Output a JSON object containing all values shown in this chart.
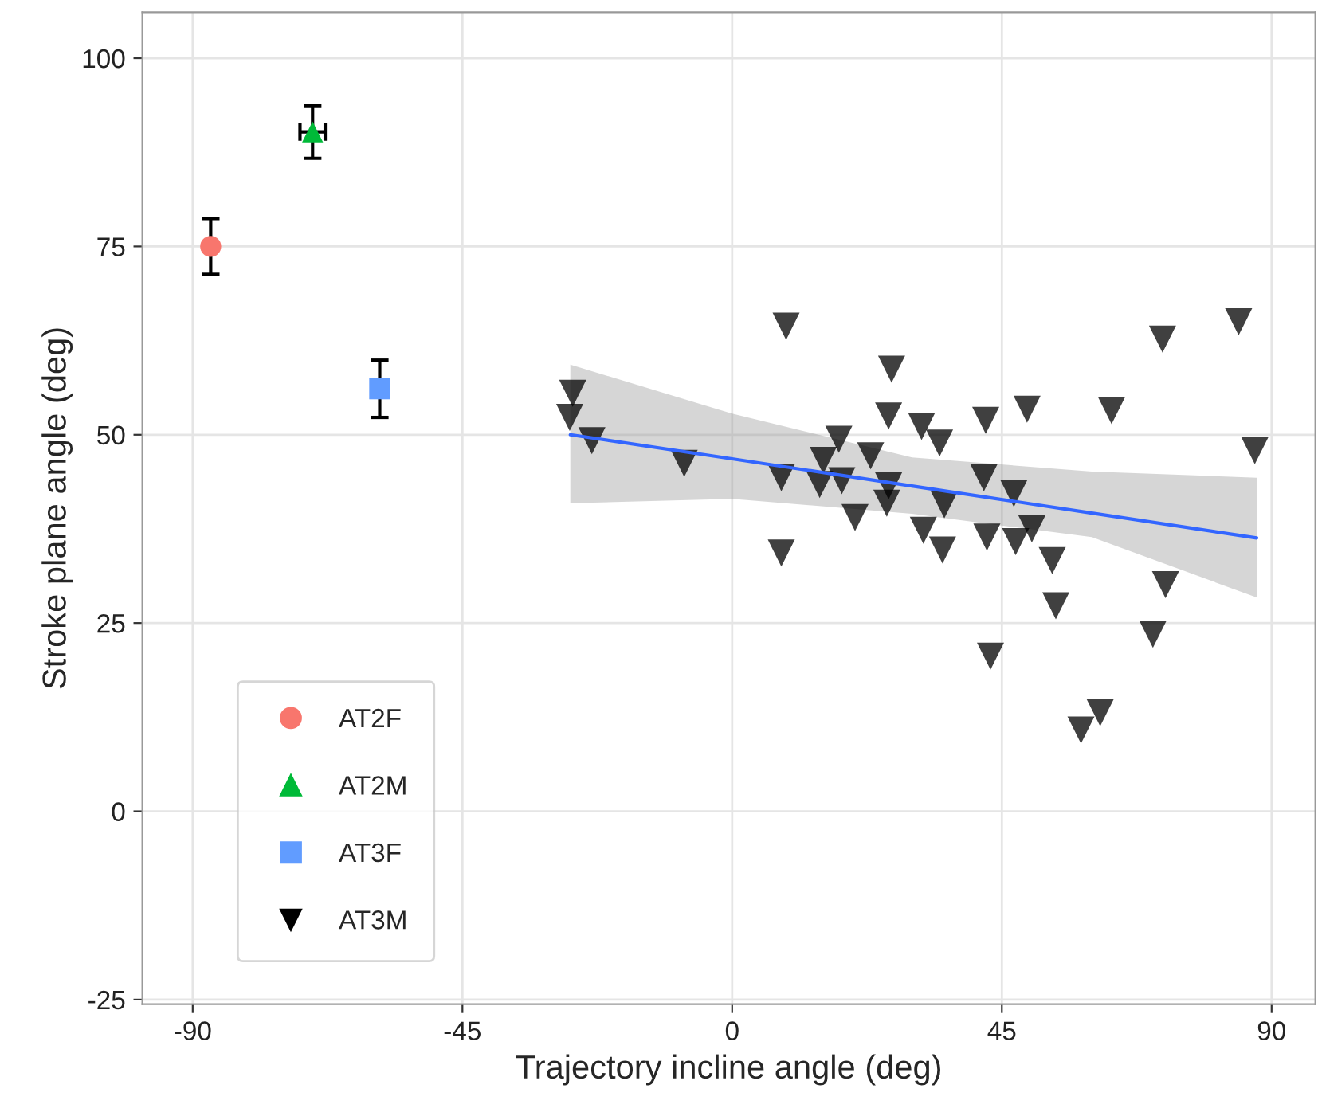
{
  "chart_data": {
    "type": "scatter",
    "xlabel": "Trajectory incline angle (deg)",
    "ylabel": "Stroke plane angle (deg)",
    "xlim": [
      -98.4,
      97.3
    ],
    "ylim": [
      -25.6,
      106.1
    ],
    "xticks": [
      -90,
      -45,
      0,
      45,
      90
    ],
    "yticks": [
      -25,
      0,
      25,
      50,
      75,
      100
    ],
    "grid": true,
    "legend": "bottom left",
    "series": [
      {
        "name": "AT2F",
        "color": "#f8766d",
        "marker": "circle",
        "x": [
          -87
        ],
        "values": [
          75
        ],
        "errors": [
          3.7
        ]
      },
      {
        "name": "AT2M",
        "color": "#00ba38",
        "marker": "triangle",
        "x": [
          -70
        ],
        "values": [
          90.2
        ],
        "errors": [
          3.5
        ],
        "xerrors": [
          2.1
        ]
      },
      {
        "name": "AT3F",
        "color": "#619cff",
        "marker": "square",
        "x": [
          -58.8
        ],
        "values": [
          56.1
        ],
        "errors": [
          3.8
        ]
      },
      {
        "name": "AT3M",
        "color": "#000000",
        "marker": "triangle_down",
        "x": [
          -26.6,
          -27.1,
          -23.4,
          -8.0,
          9.0,
          8.2,
          8.2,
          15.2,
          14.6,
          17.8,
          18.3,
          20.5,
          23.1,
          26.6,
          26.1,
          26.1,
          25.8,
          31.6,
          34.6,
          31.9,
          35.1,
          35.4,
          42.0,
          42.5,
          47.3,
          50.0,
          47.0,
          42.3,
          49.2,
          63.3,
          71.8,
          84.5,
          87.2,
          53.4,
          54.0,
          72.3,
          70.2,
          43.1,
          61.4,
          58.2
        ],
        "values": [
          55.5,
          52.3,
          49.2,
          46.2,
          64.4,
          44.3,
          34.3,
          46.6,
          43.4,
          49.4,
          43.9,
          39.0,
          47.2,
          58.7,
          52.5,
          43.2,
          40.9,
          51.1,
          48.9,
          37.3,
          34.7,
          40.7,
          44.3,
          36.4,
          35.8,
          37.5,
          42.2,
          51.9,
          53.4,
          53.2,
          62.7,
          65.0,
          47.9,
          33.3,
          27.3,
          30.1,
          23.5,
          20.6,
          13.1,
          10.8
        ]
      },
      {
        "type": "line",
        "color": "#3366ff",
        "x": [
          -27,
          0,
          30,
          60,
          87.5
        ],
        "values": [
          50,
          46.8,
          43.2,
          39.6,
          36.3
        ],
        "lower": [
          40.9,
          41.5,
          39.5,
          36.4,
          28.4
        ],
        "upper": [
          59.3,
          52.8,
          47.0,
          45.1,
          44.3
        ]
      }
    ]
  }
}
